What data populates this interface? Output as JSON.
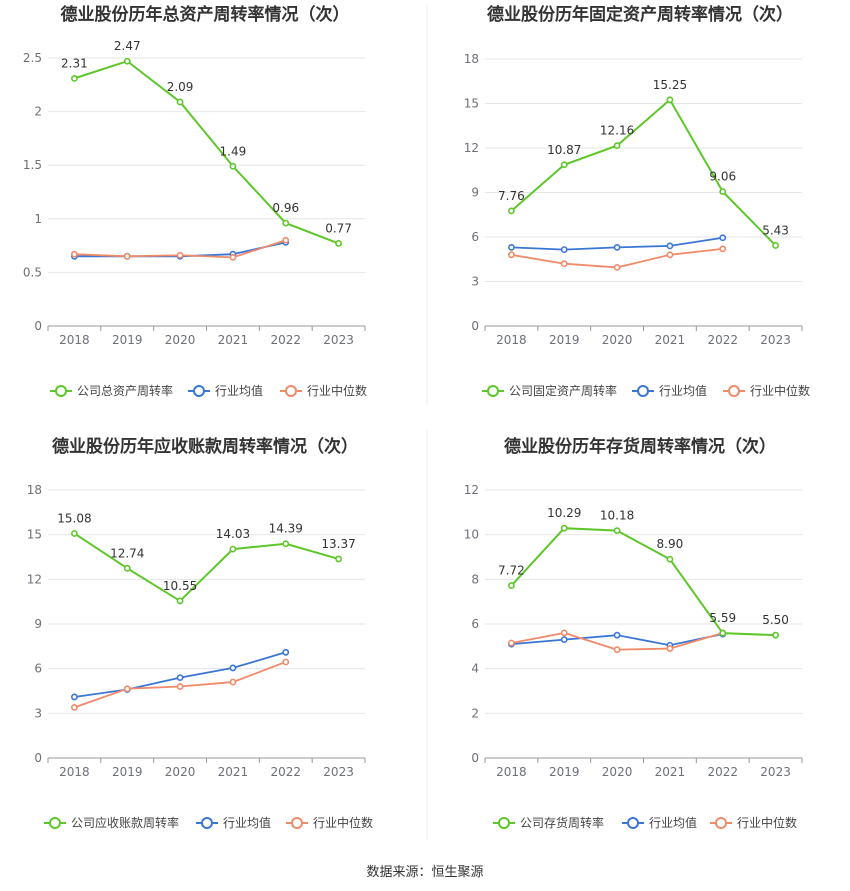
{
  "source_note": "数据来源：恒生聚源",
  "colors": {
    "company": "#5dc72a",
    "avg": "#3b76d6",
    "median": "#f08a68",
    "grid": "#e6e6e6",
    "axis": "#999999"
  },
  "chart_data": [
    {
      "type": "line",
      "title": "德业股份历年总资产周转率情况（次）",
      "categories": [
        "2018",
        "2019",
        "2020",
        "2021",
        "2022",
        "2023"
      ],
      "ylim": [
        0,
        2.5
      ],
      "yticks": [
        "0",
        "0.5",
        "1",
        "1.5",
        "2",
        "2.5"
      ],
      "label_decimals": 2,
      "series": [
        {
          "name": "公司总资产周转率",
          "key": "company",
          "values": [
            2.31,
            2.47,
            2.09,
            1.49,
            0.96,
            0.77
          ],
          "labels": [
            "2.31",
            "2.47",
            "2.09",
            "1.49",
            "0.96",
            "0.77"
          ]
        },
        {
          "name": "行业均值",
          "key": "avg",
          "values": [
            0.65,
            0.65,
            0.65,
            0.67,
            0.78,
            null
          ]
        },
        {
          "name": "行业中位数",
          "key": "median",
          "values": [
            0.67,
            0.65,
            0.66,
            0.64,
            0.8,
            null
          ]
        }
      ]
    },
    {
      "type": "line",
      "title": "德业股份历年固定资产周转率情况（次）",
      "categories": [
        "2018",
        "2019",
        "2020",
        "2021",
        "2022",
        "2023"
      ],
      "ylim": [
        0,
        18
      ],
      "yticks": [
        "0",
        "3",
        "6",
        "9",
        "12",
        "15",
        "18"
      ],
      "series": [
        {
          "name": "公司固定资产周转率",
          "key": "company",
          "values": [
            7.76,
            10.87,
            12.16,
            15.25,
            9.06,
            5.43
          ],
          "labels": [
            "7.76",
            "10.87",
            "12.16",
            "15.25",
            "9.06",
            "5.43"
          ]
        },
        {
          "name": "行业均值",
          "key": "avg",
          "values": [
            5.3,
            5.15,
            5.3,
            5.4,
            5.95,
            null
          ]
        },
        {
          "name": "行业中位数",
          "key": "median",
          "values": [
            4.8,
            4.2,
            3.95,
            4.8,
            5.2,
            null
          ]
        }
      ]
    },
    {
      "type": "line",
      "title": "德业股份历年应收账款周转率情况（次）",
      "categories": [
        "2018",
        "2019",
        "2020",
        "2021",
        "2022",
        "2023"
      ],
      "ylim": [
        0,
        18
      ],
      "yticks": [
        "0",
        "3",
        "6",
        "9",
        "12",
        "15",
        "18"
      ],
      "series": [
        {
          "name": "公司应收账款周转率",
          "key": "company",
          "values": [
            15.08,
            12.74,
            10.55,
            14.03,
            14.39,
            13.37
          ],
          "labels": [
            "15.08",
            "12.74",
            "10.55",
            "14.03",
            "14.39",
            "13.37"
          ]
        },
        {
          "name": "行业均值",
          "key": "avg",
          "values": [
            4.1,
            4.6,
            5.4,
            6.05,
            7.1,
            null
          ]
        },
        {
          "name": "行业中位数",
          "key": "median",
          "values": [
            3.4,
            4.65,
            4.8,
            5.1,
            6.45,
            null
          ]
        }
      ]
    },
    {
      "type": "line",
      "title": "德业股份历年存货周转率情况（次）",
      "categories": [
        "2018",
        "2019",
        "2020",
        "2021",
        "2022",
        "2023"
      ],
      "ylim": [
        0,
        12
      ],
      "yticks": [
        "0",
        "2",
        "4",
        "6",
        "8",
        "10",
        "12"
      ],
      "series": [
        {
          "name": "公司存货周转率",
          "key": "company",
          "values": [
            7.72,
            10.29,
            10.18,
            8.9,
            5.59,
            5.5
          ],
          "labels": [
            "7.72",
            "10.29",
            "10.18",
            "8.90",
            "5.59",
            "5.50"
          ]
        },
        {
          "name": "行业均值",
          "key": "avg",
          "values": [
            5.1,
            5.3,
            5.5,
            5.05,
            5.55,
            null
          ]
        },
        {
          "name": "行业中位数",
          "key": "median",
          "values": [
            5.15,
            5.6,
            4.85,
            4.9,
            5.6,
            null
          ]
        }
      ]
    }
  ]
}
